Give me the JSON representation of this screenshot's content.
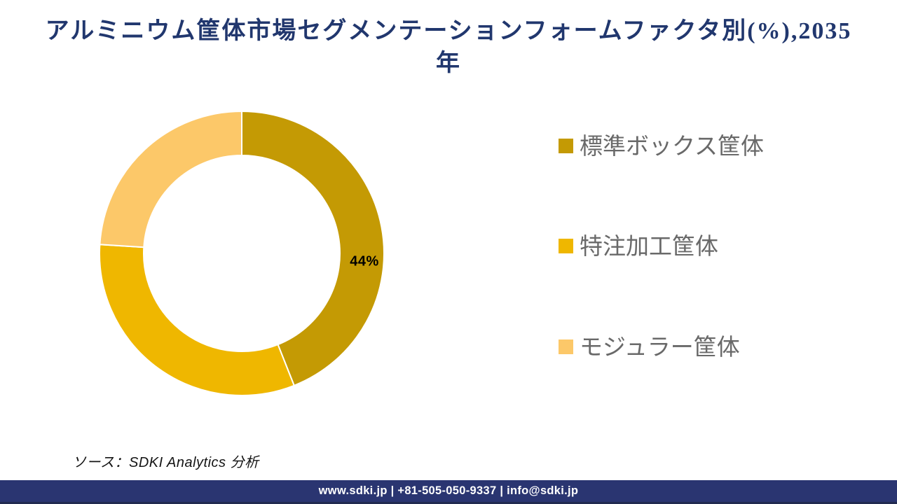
{
  "title": {
    "lines": [
      "アルミニウム筐体市場セグメンテーションフォームファクタ別(%),2035",
      "年"
    ],
    "full_text": "アルミニウム筐体市場セグメンテーションフォームファクタ別(%),2035年",
    "color": "#21376E"
  },
  "chart_data": {
    "type": "pie",
    "subtype": "donut",
    "title": "アルミニウム筐体市場セグメンテーションフォームファクタ別(%),2035年",
    "categories": [
      "標準ボックス筐体",
      "特注加工筐体",
      "モジュラー筐体"
    ],
    "values": [
      44,
      32,
      24
    ],
    "unit": "%",
    "colors": [
      "#C49A04",
      "#EFB700",
      "#FCC869"
    ],
    "data_labels": [
      {
        "segment": "標準ボックス筐体",
        "text": "44%"
      }
    ],
    "legend_position": "right",
    "start_angle_deg": 0,
    "direction": "clockwise",
    "separator_color": "#FFFFFF"
  },
  "legend": {
    "items": [
      {
        "label": "標準ボックス筐体",
        "color": "#C49A04"
      },
      {
        "label": "特注加工筐体",
        "color": "#EFB700"
      },
      {
        "label": "モジュラー筐体",
        "color": "#FCC869"
      }
    ],
    "text_color": "#696969"
  },
  "source": {
    "text": "ソース：SDKI Analytics 分析"
  },
  "footer": {
    "text": "www.sdki.jp | +81-505-050-9337 | info@sdki.jp",
    "background": "#2A3571"
  }
}
